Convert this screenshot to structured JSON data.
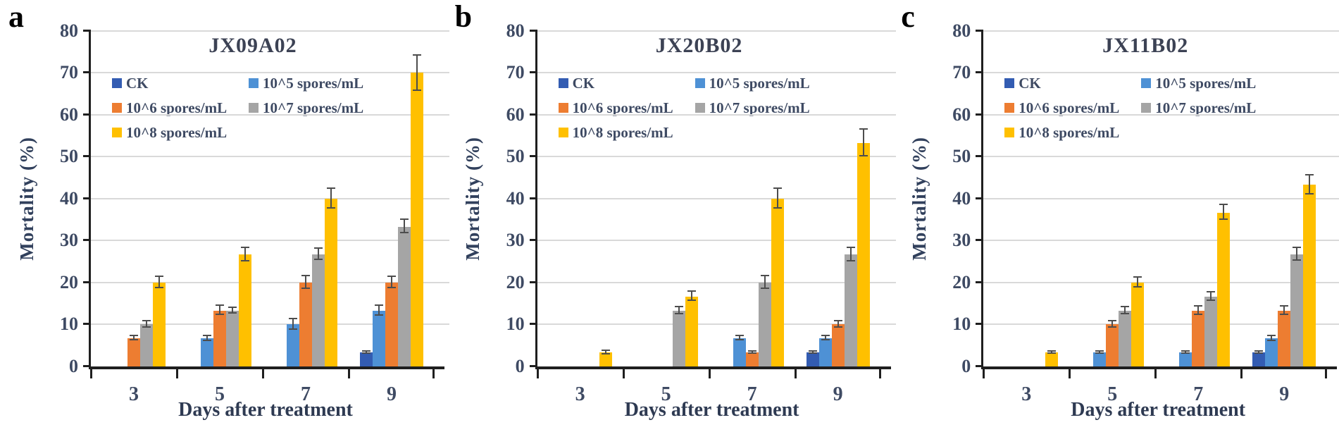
{
  "axes": {
    "ylabel": "Mortality (%)",
    "xlabel": "Days after treatment",
    "ymin": 0,
    "ymax": 80,
    "ytick_step": 10,
    "categories": [
      "3",
      "5",
      "7",
      "9"
    ]
  },
  "colors": {
    "CK": "#335cb2",
    "10^5 spores/mL": "#4e91d5",
    "10^6 spores/mL": "#ed7d31",
    "10^7 spores/mL": "#a5a5a5",
    "10^8 spores/mL": "#ffc000",
    "gridline": "#d9d9d9",
    "axis": "#1f1f1f",
    "error_bar": "#4d4d4d"
  },
  "legend": {
    "items": [
      {
        "label": "CK"
      },
      {
        "label": "10^5 spores/mL"
      },
      {
        "label": "10^6 spores/mL"
      },
      {
        "label": "10^7 spores/mL"
      },
      {
        "label": "10^8 spores/mL"
      }
    ]
  },
  "chart_data": [
    {
      "type": "bar",
      "panel_letter": "a",
      "title": "JX09A02",
      "xlabel": "Days after treatment",
      "ylabel": "Mortality (%)",
      "ylim": [
        0,
        80
      ],
      "grid": true,
      "legend_position": "upper-left-inside",
      "categories": [
        "3",
        "5",
        "7",
        "9"
      ],
      "series": [
        {
          "name": "CK",
          "values": [
            0,
            0,
            0,
            3.3
          ],
          "errors": [
            0,
            0,
            0,
            0.3
          ]
        },
        {
          "name": "10^5 spores/mL",
          "values": [
            0,
            6.7,
            10,
            13.3
          ],
          "errors": [
            0,
            0.6,
            1.2,
            1.2
          ]
        },
        {
          "name": "10^6 spores/mL",
          "values": [
            6.7,
            13.3,
            20,
            20
          ],
          "errors": [
            0.5,
            1.1,
            1.5,
            1.4
          ]
        },
        {
          "name": "10^7 spores/mL",
          "values": [
            10,
            13.3,
            26.7,
            33.3
          ],
          "errors": [
            0.8,
            0.7,
            1.4,
            1.6
          ]
        },
        {
          "name": "10^8 spores/mL",
          "values": [
            20,
            26.7,
            40,
            70
          ],
          "errors": [
            1.4,
            1.6,
            2.4,
            4.2
          ]
        }
      ]
    },
    {
      "type": "bar",
      "panel_letter": "b",
      "title": "JX20B02",
      "xlabel": "Days after treatment",
      "ylabel": "Mortality (%)",
      "ylim": [
        0,
        80
      ],
      "grid": true,
      "legend_position": "upper-left-inside",
      "categories": [
        "3",
        "5",
        "7",
        "9"
      ],
      "series": [
        {
          "name": "CK",
          "values": [
            0,
            0,
            0,
            3.3
          ],
          "errors": [
            0,
            0,
            0,
            0.3
          ]
        },
        {
          "name": "10^5 spores/mL",
          "values": [
            0,
            0,
            6.7,
            6.7
          ],
          "errors": [
            0,
            0,
            0.5,
            0.5
          ]
        },
        {
          "name": "10^6 spores/mL",
          "values": [
            0,
            0,
            3.3,
            10
          ],
          "errors": [
            0,
            0,
            0.3,
            0.8
          ]
        },
        {
          "name": "10^7 spores/mL",
          "values": [
            0,
            13.3,
            20,
            26.7
          ],
          "errors": [
            0,
            0.9,
            1.5,
            1.6
          ]
        },
        {
          "name": "10^8 spores/mL",
          "values": [
            3.3,
            16.7,
            40,
            53.3
          ],
          "errors": [
            0.4,
            1.1,
            2.4,
            3.2
          ]
        }
      ]
    },
    {
      "type": "bar",
      "panel_letter": "c",
      "title": "JX11B02",
      "xlabel": "Days after treatment",
      "ylabel": "Mortality (%)",
      "ylim": [
        0,
        80
      ],
      "grid": true,
      "legend_position": "upper-left-inside",
      "categories": [
        "3",
        "5",
        "7",
        "9"
      ],
      "series": [
        {
          "name": "CK",
          "values": [
            0,
            0,
            0,
            3.3
          ],
          "errors": [
            0,
            0,
            0,
            0.2
          ]
        },
        {
          "name": "10^5 spores/mL",
          "values": [
            0,
            3.3,
            3.3,
            6.7
          ],
          "errors": [
            0,
            0.2,
            0.2,
            0.6
          ]
        },
        {
          "name": "10^6 spores/mL",
          "values": [
            0,
            10,
            13.3,
            13.3
          ],
          "errors": [
            0,
            0.8,
            1.0,
            1.0
          ]
        },
        {
          "name": "10^7 spores/mL",
          "values": [
            0,
            13.3,
            16.7,
            26.7
          ],
          "errors": [
            0,
            0.9,
            1.0,
            1.5
          ]
        },
        {
          "name": "10^8 spores/mL",
          "values": [
            3.3,
            20,
            36.7,
            43.3
          ],
          "errors": [
            0.2,
            1.2,
            1.8,
            2.3
          ]
        }
      ]
    }
  ]
}
